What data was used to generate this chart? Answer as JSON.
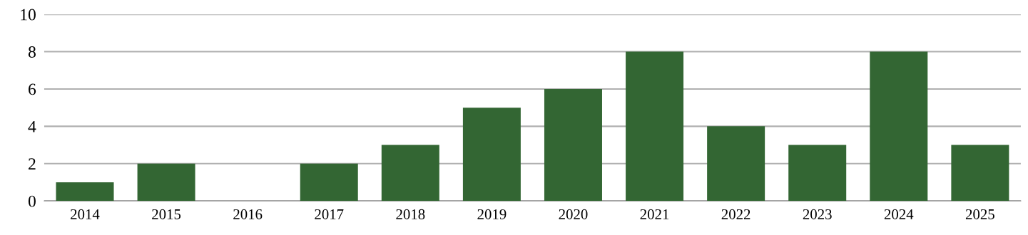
{
  "chart_data": {
    "type": "bar",
    "categories": [
      "2014",
      "2015",
      "2016",
      "2017",
      "2018",
      "2019",
      "2020",
      "2021",
      "2022",
      "2023",
      "2024",
      "2025"
    ],
    "values": [
      1,
      2,
      0,
      2,
      3,
      5,
      6,
      8,
      4,
      3,
      8,
      3
    ],
    "color": "#336633",
    "ylim": [
      0,
      10
    ],
    "yticks": [
      0,
      2,
      4,
      6,
      8,
      10
    ],
    "grid": "y"
  }
}
